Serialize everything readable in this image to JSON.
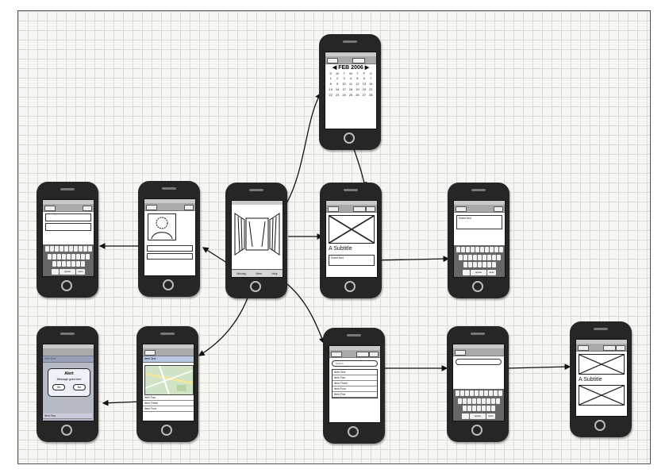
{
  "calendar": {
    "title": "FEB 2006",
    "weekdays": [
      "S",
      "M",
      "T",
      "W",
      "T",
      "F",
      "S"
    ],
    "days": [
      "1",
      "2",
      "3",
      "4",
      "5",
      "6",
      "7",
      "8",
      "9",
      "10",
      "11",
      "12",
      "13",
      "14",
      "15",
      "16",
      "17",
      "18",
      "19",
      "20",
      "21",
      "22",
      "23",
      "24",
      "25",
      "26",
      "27",
      "28"
    ]
  },
  "detail": {
    "subtitle": "A Subtitle",
    "text": "Some text"
  },
  "cover_tabs": [
    "Moving",
    "View",
    "Help"
  ],
  "keyboard_text": {
    "text": "Some text"
  },
  "list": {
    "items": [
      "Item One",
      "Item Two",
      "Item Three",
      "Item Four",
      "Item Five"
    ]
  },
  "search": {
    "placeholder": "Search"
  },
  "final_detail": {
    "subtitle": "A Subtitle"
  },
  "map_screen": {
    "header": "Item One",
    "rows": [
      "Item Two",
      "Item Three",
      "Item Four"
    ]
  },
  "alert": {
    "title": "Alert",
    "message": "Message goes here",
    "btn_yes": "Ok",
    "btn_no": "No",
    "header": "Item One",
    "footer": "Item Two"
  },
  "keyboard": {
    "space_label": "space",
    "return_label": "return"
  },
  "colors": {
    "phone": "#262626",
    "grid_line": "#dcdcd6",
    "arrow": "#111111"
  }
}
